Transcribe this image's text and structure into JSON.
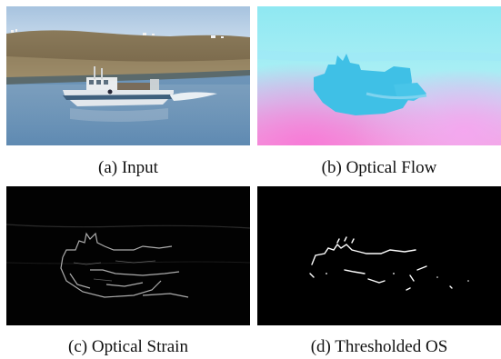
{
  "figure": {
    "panels": [
      {
        "id": "a",
        "caption": "(a) Input"
      },
      {
        "id": "b",
        "caption": "(b) Optical Flow"
      },
      {
        "id": "c",
        "caption": "(c) Optical Strain"
      },
      {
        "id": "d",
        "caption_prefix": "(d) Thresholded",
        "caption_abbrev": "OS"
      }
    ]
  }
}
